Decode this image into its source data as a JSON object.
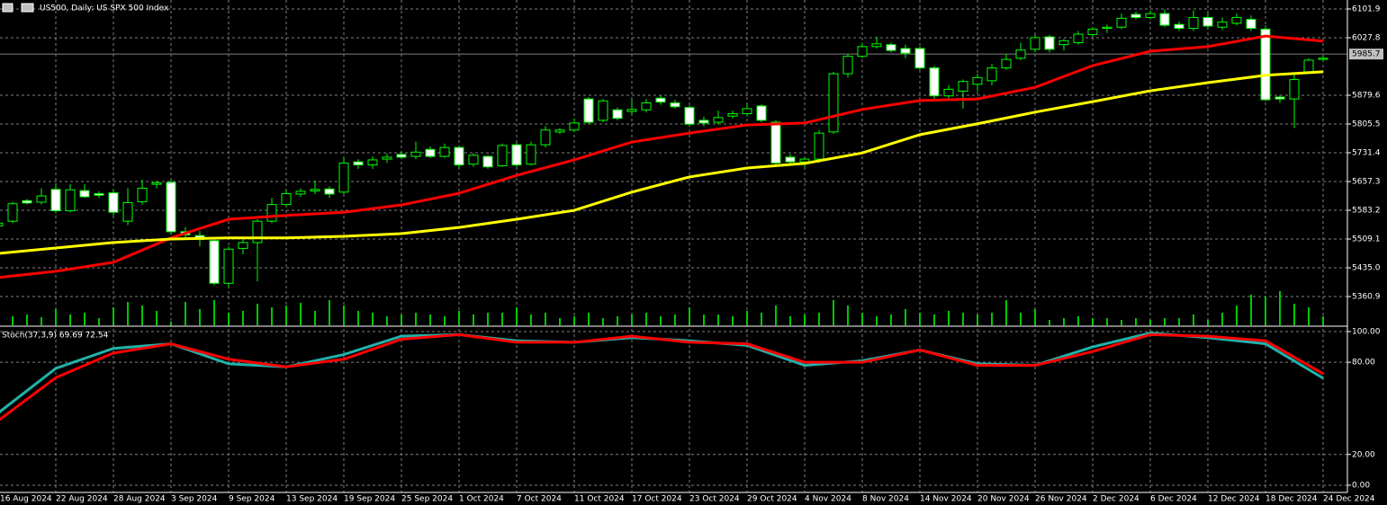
{
  "chart_data": [
    {
      "type": "candlestick",
      "title": "US500, Daily:  US SPX 500 Index",
      "categories": [
        "16 Aug 2024",
        null,
        null,
        null,
        "22 Aug 2024",
        null,
        null,
        null,
        "28 Aug 2024",
        null,
        null,
        null,
        "3 Sep 2024",
        null,
        null,
        null,
        "9 Sep 2024",
        null,
        null,
        null,
        "13 Sep 2024",
        null,
        null,
        null,
        "19 Sep 2024",
        null,
        null,
        null,
        "25 Sep 2024",
        null,
        null,
        null,
        "1 Oct 2024",
        null,
        null,
        null,
        "7 Oct 2024",
        null,
        null,
        null,
        "11 Oct 2024",
        null,
        null,
        null,
        "17 Oct 2024",
        null,
        null,
        null,
        "23 Oct 2024",
        null,
        null,
        null,
        "29 Oct 2024",
        null,
        null,
        null,
        "4 Nov 2024",
        null,
        null,
        null,
        "8 Nov 2024",
        null,
        null,
        null,
        "14 Nov 2024",
        null,
        null,
        null,
        "20 Nov 2024",
        null,
        null,
        null,
        "26 Nov 2024",
        null,
        null,
        null,
        "2 Dec 2024",
        null,
        null,
        null,
        "6 Dec 2024",
        null,
        null,
        null,
        "12 Dec 2024",
        null,
        null,
        null,
        "18 Dec 2024",
        null,
        null,
        null,
        "24 Dec 2024"
      ],
      "open": [
        5543,
        5555,
        5608,
        5604,
        5637,
        5582,
        5634,
        5626,
        5628,
        5555,
        5605,
        5650,
        5655,
        5528,
        5518,
        5505,
        5395,
        5485,
        5500,
        5555,
        5598,
        5625,
        5633,
        5638,
        5630,
        5708,
        5700,
        5715,
        5727,
        5722,
        5740,
        5722,
        5745,
        5702,
        5722,
        5698,
        5752,
        5702,
        5752,
        5785,
        5790,
        5870,
        5815,
        5842,
        5838,
        5842,
        5872,
        5860,
        5848,
        5815,
        5810,
        5826,
        5832,
        5852,
        5810,
        5720,
        5708,
        5715,
        5785,
        5935,
        5980,
        6005,
        6010,
        6000,
        6000,
        5950,
        5878,
        5890,
        5908,
        5917,
        5950,
        5975,
        5998,
        6030,
        6010,
        6015,
        6036,
        6052,
        6055,
        6088,
        6080,
        6090,
        6062,
        6052,
        6080,
        6055,
        6065,
        6075,
        6050,
        5875,
        5870,
        5940,
        5972
      ],
      "high": [
        5556,
        5605,
        5612,
        5640,
        5652,
        5650,
        5650,
        5632,
        5636,
        5640,
        5662,
        5660,
        5663,
        5540,
        5530,
        5510,
        5490,
        5510,
        5560,
        5615,
        5635,
        5640,
        5660,
        5645,
        5720,
        5715,
        5722,
        5730,
        5735,
        5760,
        5748,
        5755,
        5750,
        5730,
        5725,
        5755,
        5758,
        5760,
        5800,
        5795,
        5820,
        5875,
        5870,
        5848,
        5870,
        5870,
        5880,
        5868,
        5853,
        5825,
        5840,
        5840,
        5860,
        5856,
        5815,
        5728,
        5720,
        5790,
        5940,
        5985,
        6015,
        6030,
        6015,
        6010,
        6005,
        5955,
        5905,
        5920,
        5935,
        5960,
        5985,
        6015,
        6035,
        6035,
        6025,
        6045,
        6055,
        6062,
        6090,
        6095,
        6098,
        6100,
        6070,
        6098,
        6090,
        6080,
        6090,
        6085,
        6060,
        5880,
        5935,
        5975,
        5980
      ],
      "low": [
        5535,
        5550,
        5598,
        5598,
        5575,
        5578,
        5615,
        5615,
        5570,
        5545,
        5598,
        5640,
        5520,
        5512,
        5490,
        5390,
        5385,
        5470,
        5400,
        5550,
        5592,
        5618,
        5625,
        5615,
        5625,
        5690,
        5690,
        5705,
        5715,
        5715,
        5718,
        5718,
        5690,
        5695,
        5690,
        5695,
        5695,
        5698,
        5745,
        5780,
        5785,
        5805,
        5810,
        5815,
        5830,
        5835,
        5855,
        5845,
        5800,
        5800,
        5805,
        5820,
        5825,
        5810,
        5700,
        5700,
        5695,
        5705,
        5780,
        5925,
        5975,
        6000,
        5990,
        5975,
        5945,
        5870,
        5870,
        5845,
        5890,
        5905,
        5945,
        5970,
        5990,
        5990,
        5995,
        6010,
        6030,
        6040,
        6050,
        6075,
        6075,
        6055,
        6045,
        6045,
        6050,
        6048,
        6060,
        6045,
        5865,
        5860,
        5795,
        5935,
        5968
      ],
      "close": [
        5550,
        5600,
        5602,
        5620,
        5582,
        5636,
        5618,
        5622,
        5578,
        5603,
        5640,
        5654,
        5528,
        5520,
        5508,
        5395,
        5483,
        5500,
        5555,
        5598,
        5626,
        5632,
        5637,
        5625,
        5705,
        5700,
        5713,
        5720,
        5720,
        5733,
        5722,
        5745,
        5700,
        5725,
        5695,
        5750,
        5700,
        5752,
        5790,
        5790,
        5808,
        5810,
        5865,
        5820,
        5843,
        5860,
        5862,
        5850,
        5805,
        5808,
        5822,
        5832,
        5845,
        5815,
        5705,
        5708,
        5715,
        5782,
        5935,
        5980,
        6005,
        6012,
        5995,
        5988,
        5950,
        5878,
        5895,
        5915,
        5925,
        5950,
        5972,
        5996,
        6028,
        5998,
        6020,
        6037,
        6050,
        6055,
        6078,
        6080,
        6090,
        6060,
        6052,
        6080,
        6058,
        6068,
        6080,
        6052,
        5868,
        5870,
        5920,
        5970,
        5975
      ],
      "volume": [
        8,
        10,
        12,
        9,
        18,
        12,
        14,
        8,
        20,
        26,
        22,
        16,
        4,
        26,
        18,
        28,
        14,
        16,
        24,
        20,
        22,
        25,
        16,
        28,
        22,
        16,
        14,
        10,
        12,
        14,
        12,
        10,
        16,
        12,
        14,
        14,
        20,
        12,
        14,
        8,
        10,
        14,
        8,
        10,
        12,
        14,
        10,
        12,
        20,
        12,
        12,
        10,
        16,
        14,
        22,
        10,
        12,
        14,
        28,
        22,
        14,
        10,
        12,
        18,
        14,
        12,
        16,
        14,
        12,
        14,
        28,
        14,
        18,
        6,
        8,
        10,
        8,
        8,
        6,
        8,
        6,
        8,
        8,
        12,
        6,
        14,
        22,
        34,
        32,
        38,
        24,
        20,
        10
      ],
      "volume_lim": [
        0,
        40
      ],
      "up_color": "#00ff00",
      "down_color": "#ffffff",
      "volume_color": "#00c800",
      "ylim": [
        5286.8,
        6120.4
      ],
      "yticks": [
        6101.9,
        6027.8,
        5879.6,
        5805.5,
        5731.4,
        5657.3,
        5583.2,
        5509.1,
        {
          "value": 5435,
          "label": "5435.0"
        },
        5360.9
      ],
      "last_price": 5985.7,
      "grid": true,
      "moving_averages": [
        {
          "color": "#ff0000",
          "x": [
            0,
            4,
            8,
            12,
            16,
            20,
            24,
            28,
            32,
            36,
            40,
            44,
            48,
            52,
            56,
            60,
            64,
            68,
            72,
            76,
            80,
            84,
            88,
            92
          ],
          "values": [
            5410,
            5426,
            5449,
            5512,
            5560,
            5570,
            5578,
            5597,
            5627,
            5673,
            5713,
            5759,
            5782,
            5803,
            5808,
            5843,
            5866,
            5870,
            5900,
            5956,
            5993,
            6005,
            6032,
            6019
          ]
        },
        {
          "color": "#ffff00",
          "x": [
            0,
            4,
            8,
            12,
            16,
            20,
            24,
            28,
            32,
            36,
            40,
            44,
            48,
            52,
            56,
            60,
            64,
            68,
            72,
            76,
            80,
            84,
            88,
            92
          ],
          "values": [
            5472,
            5486,
            5500,
            5509,
            5512,
            5512,
            5516,
            5523,
            5539,
            5560,
            5583,
            5630,
            5669,
            5692,
            5704,
            5731,
            5778,
            5806,
            5836,
            5863,
            5891,
            5912,
            5931,
            5940
          ]
        }
      ]
    },
    {
      "type": "line",
      "title": "Stoch(37,3,9) 69.69 72.54",
      "ylim": [
        -4.7,
        102.9
      ],
      "yticks": [
        {
          "value": 100,
          "label": "100.00"
        },
        {
          "value": 80,
          "label": "80.00"
        },
        {
          "value": 20,
          "label": "20.00"
        },
        {
          "value": 0,
          "label": "0.00"
        }
      ],
      "grid": true,
      "series": [
        {
          "color": "#20b2aa",
          "x": [
            0,
            4,
            8,
            12,
            16,
            20,
            24,
            28,
            32,
            36,
            40,
            44,
            48,
            52,
            56,
            60,
            64,
            68,
            72,
            76,
            80,
            84,
            88,
            92
          ],
          "values": [
            47,
            76,
            89,
            92,
            79,
            77,
            85,
            97,
            98,
            94,
            93,
            96,
            94,
            91,
            78,
            81,
            88,
            79,
            78,
            90,
            99,
            96,
            92,
            69.69
          ]
        },
        {
          "color": "#ff0000",
          "x": [
            0,
            4,
            8,
            12,
            16,
            20,
            24,
            28,
            32,
            36,
            40,
            44,
            48,
            52,
            56,
            60,
            64,
            68,
            72,
            76,
            80,
            84,
            88,
            92
          ],
          "values": [
            42,
            70,
            86,
            92,
            82,
            77,
            82,
            95,
            98,
            93,
            93,
            97,
            93,
            92,
            80,
            80,
            88,
            78,
            78,
            87,
            98,
            97,
            94,
            72.54
          ]
        }
      ]
    }
  ]
}
